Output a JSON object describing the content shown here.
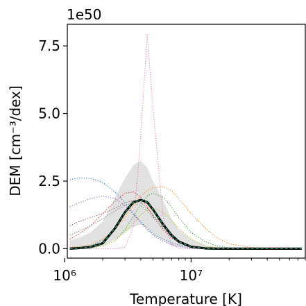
{
  "chart_data": {
    "type": "line",
    "title": "",
    "xlabel": "Temperature [K]",
    "ylabel": "DEM [cm⁻³/dex]",
    "offset_text": "1e50",
    "x_scale": "log",
    "xlim": [
      1050000,
      80000000
    ],
    "ylim": [
      -0.35,
      8.3
    ],
    "x_ticks": [
      {
        "value": 1000000,
        "label": "10⁶"
      },
      {
        "value": 10000000,
        "label": "10⁷"
      }
    ],
    "y_ticks": [
      {
        "value": 0.0,
        "label": "0.0"
      },
      {
        "value": 2.5,
        "label": "2.5"
      },
      {
        "value": 5.0,
        "label": "5.0"
      },
      {
        "value": 7.5,
        "label": "7.5"
      }
    ],
    "grid": false,
    "x": [
      1100000,
      1300000,
      1600000,
      2000000,
      2500000,
      3000000,
      3500000,
      4000000,
      4500000,
      5000000,
      6000000,
      7000000,
      8000000,
      10000000,
      13000000,
      16000000,
      20000000,
      30000000,
      50000000,
      75000000
    ],
    "uncertainty_band": {
      "color": "#d9d9d9",
      "upper": [
        0.3,
        0.4,
        0.6,
        1.0,
        1.9,
        2.6,
        3.1,
        3.25,
        3.0,
        2.5,
        1.8,
        1.1,
        0.7,
        0.35,
        0.12,
        0.05,
        0.02,
        0.0,
        0.0,
        0.0
      ],
      "lower": [
        0.0,
        0.0,
        0.0,
        0.1,
        0.35,
        0.6,
        0.8,
        0.9,
        0.75,
        0.55,
        0.3,
        0.12,
        0.05,
        0.0,
        0.0,
        0.0,
        0.0,
        0.0,
        0.0,
        0.0
      ]
    },
    "series": [
      {
        "color": "#1f77b4",
        "style": "dotted",
        "values": [
          2.55,
          2.62,
          2.6,
          2.45,
          2.1,
          1.7,
          1.3,
          1.0,
          0.75,
          0.55,
          0.35,
          0.22,
          0.14,
          0.07,
          0.03,
          0.01,
          0.0,
          0.0,
          0.0,
          0.0
        ]
      },
      {
        "color": "#ff7f0e",
        "style": "dotted",
        "values": [
          0.05,
          0.08,
          0.15,
          0.35,
          0.7,
          1.2,
          1.6,
          1.95,
          2.15,
          2.25,
          2.3,
          2.15,
          1.85,
          1.3,
          0.75,
          0.4,
          0.18,
          0.04,
          0.0,
          0.0
        ]
      },
      {
        "color": "#2ca02c",
        "style": "dotted",
        "values": [
          0.0,
          0.01,
          0.03,
          0.1,
          0.3,
          0.7,
          1.2,
          1.65,
          1.95,
          2.05,
          1.9,
          1.55,
          1.15,
          0.6,
          0.25,
          0.1,
          0.03,
          0.0,
          0.0,
          0.0
        ]
      },
      {
        "color": "#d62728",
        "style": "dotted",
        "values": [
          0.35,
          0.55,
          0.85,
          1.3,
          1.75,
          2.05,
          2.1,
          1.9,
          1.55,
          1.2,
          0.7,
          0.4,
          0.22,
          0.08,
          0.02,
          0.0,
          0.0,
          0.0,
          0.0,
          0.0
        ]
      },
      {
        "color": "#9467bd",
        "style": "dotted",
        "values": [
          1.55,
          1.7,
          1.85,
          1.95,
          1.85,
          1.6,
          1.25,
          0.95,
          0.7,
          0.5,
          0.28,
          0.15,
          0.08,
          0.02,
          0.0,
          0.0,
          0.0,
          0.0,
          0.0,
          0.0
        ]
      },
      {
        "color": "#8c564b",
        "style": "dotted",
        "values": [
          0.85,
          1.0,
          1.15,
          1.3,
          1.5,
          1.7,
          1.78,
          1.7,
          1.5,
          1.25,
          0.8,
          0.5,
          0.3,
          0.1,
          0.03,
          0.0,
          0.0,
          0.0,
          0.0,
          0.0
        ]
      },
      {
        "color": "#e377c2",
        "style": "dotted",
        "values": [
          0.0,
          0.0,
          0.0,
          0.0,
          0.0,
          0.05,
          0.8,
          4.2,
          7.9,
          5.2,
          1.2,
          0.15,
          0.01,
          0.0,
          0.0,
          0.0,
          0.0,
          0.0,
          0.0,
          0.0
        ]
      },
      {
        "color": "#7f7f7f",
        "style": "dotted",
        "values": [
          0.5,
          0.65,
          0.85,
          1.1,
          1.4,
          1.6,
          1.7,
          1.6,
          1.4,
          1.15,
          0.75,
          0.45,
          0.28,
          0.1,
          0.02,
          0.0,
          0.0,
          0.0,
          0.0,
          0.0
        ]
      },
      {
        "color": "#bcbd22",
        "style": "dotted",
        "values": [
          0.0,
          0.0,
          0.02,
          0.1,
          0.3,
          0.6,
          0.95,
          1.25,
          1.45,
          1.5,
          1.35,
          1.05,
          0.75,
          0.35,
          0.1,
          0.03,
          0.0,
          0.0,
          0.0,
          0.0
        ]
      },
      {
        "color": "#17becf",
        "style": "dotted",
        "values": [
          0.02,
          0.04,
          0.1,
          0.3,
          0.75,
          1.3,
          1.7,
          1.85,
          1.7,
          1.4,
          0.85,
          0.45,
          0.22,
          0.06,
          0.01,
          0.0,
          0.0,
          0.0,
          0.0,
          0.0
        ]
      },
      {
        "color": "#000000",
        "style": "solid",
        "values": [
          0.0,
          0.02,
          0.06,
          0.2,
          0.75,
          1.35,
          1.72,
          1.8,
          1.72,
          1.45,
          0.9,
          0.5,
          0.26,
          0.07,
          0.01,
          0.0,
          0.0,
          0.0,
          0.0,
          0.0
        ]
      },
      {
        "color": "#2ca06c",
        "style": "dashed",
        "values": [
          0.0,
          0.02,
          0.06,
          0.2,
          0.75,
          1.35,
          1.72,
          1.8,
          1.72,
          1.45,
          0.9,
          0.5,
          0.26,
          0.07,
          0.01,
          0.0,
          0.0,
          0.0,
          0.0,
          0.0
        ]
      }
    ]
  }
}
